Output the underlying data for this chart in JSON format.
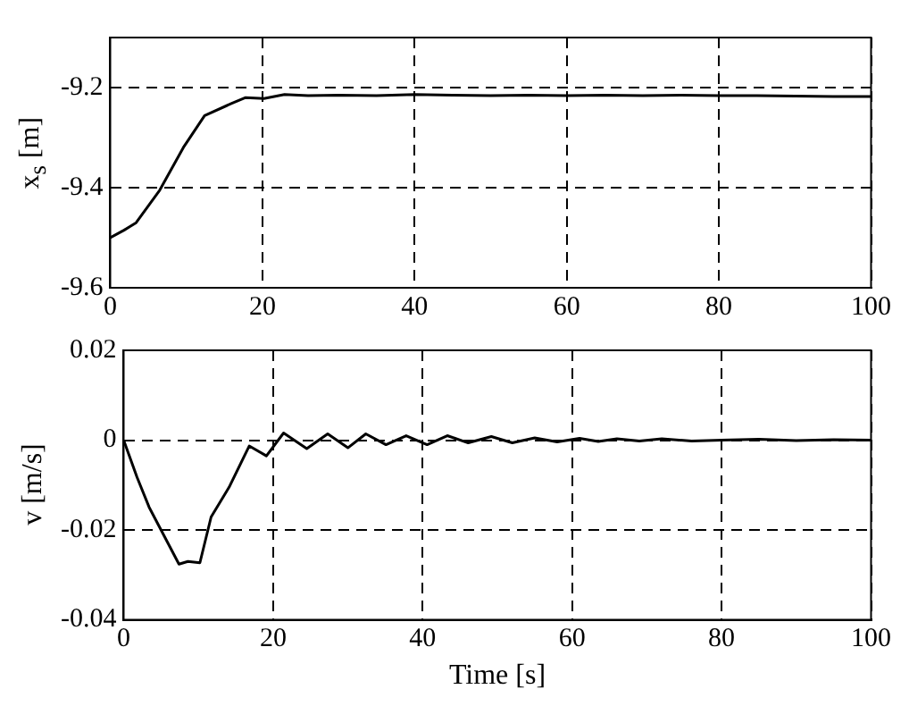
{
  "chart_data": [
    {
      "type": "line",
      "ylabel": "x$_{s}$ [m]",
      "xlim": [
        0,
        100
      ],
      "xticks": [
        0,
        20,
        40,
        60,
        80,
        100
      ],
      "ylim": [
        -9.6,
        -9.1
      ],
      "yticks": [
        -9.6,
        -9.4,
        -9.2
      ],
      "grid": true,
      "legend": false,
      "marker": "none",
      "line_style": "solid",
      "series": [
        {
          "color": "#000000",
          "x": [
            0,
            1.8,
            3.4,
            6.5,
            9.6,
            12.4,
            15.9,
            17.8,
            20.2,
            22.9,
            26,
            30,
            35,
            40,
            45,
            50,
            55,
            60,
            65,
            70,
            75,
            80,
            85,
            90,
            95,
            100
          ],
          "values": [
            -9.5,
            -9.485,
            -9.47,
            -9.405,
            -9.32,
            -9.256,
            -9.232,
            -9.22,
            -9.222,
            -9.214,
            -9.216,
            -9.215,
            -9.216,
            -9.214,
            -9.215,
            -9.216,
            -9.215,
            -9.216,
            -9.215,
            -9.216,
            -9.215,
            -9.216,
            -9.216,
            -9.217,
            -9.218,
            -9.218
          ]
        }
      ]
    },
    {
      "type": "line",
      "xlabel": "Time [s]",
      "ylabel": "v [m/s]",
      "xlim": [
        0,
        100
      ],
      "xticks": [
        0,
        20,
        40,
        60,
        80,
        100
      ],
      "ylim": [
        -0.04,
        0.02
      ],
      "yticks": [
        -0.04,
        -0.02,
        0,
        0.02
      ],
      "grid": true,
      "legend": false,
      "marker": "none",
      "line_style": "solid",
      "series": [
        {
          "color": "#000000",
          "x": [
            0,
            1.8,
            3.4,
            5,
            7.4,
            8.6,
            10.2,
            11.7,
            14.1,
            16.8,
            19.1,
            21.4,
            24.5,
            27.3,
            30,
            32.4,
            35.1,
            37.8,
            40.6,
            43.3,
            46.1,
            49.2,
            52,
            55,
            58,
            61,
            63.5,
            66,
            69,
            72,
            76,
            80,
            85,
            90,
            95,
            100
          ],
          "values": [
            0,
            -0.0083,
            -0.0149,
            -0.02,
            -0.0276,
            -0.027,
            -0.0273,
            -0.0171,
            -0.0105,
            -0.0013,
            -0.0035,
            0.0016,
            -0.0019,
            0.0014,
            -0.0017,
            0.0014,
            -0.001,
            0.001,
            -0.001,
            0.001,
            -0.0006,
            0.0008,
            -0.0006,
            0.0005,
            -0.0004,
            0.0004,
            -0.0003,
            0.0003,
            -0.0002,
            0.0003,
            -0.0002,
            0,
            0.0002,
            -0.0001,
            0.0001,
            0
          ]
        }
      ]
    }
  ]
}
